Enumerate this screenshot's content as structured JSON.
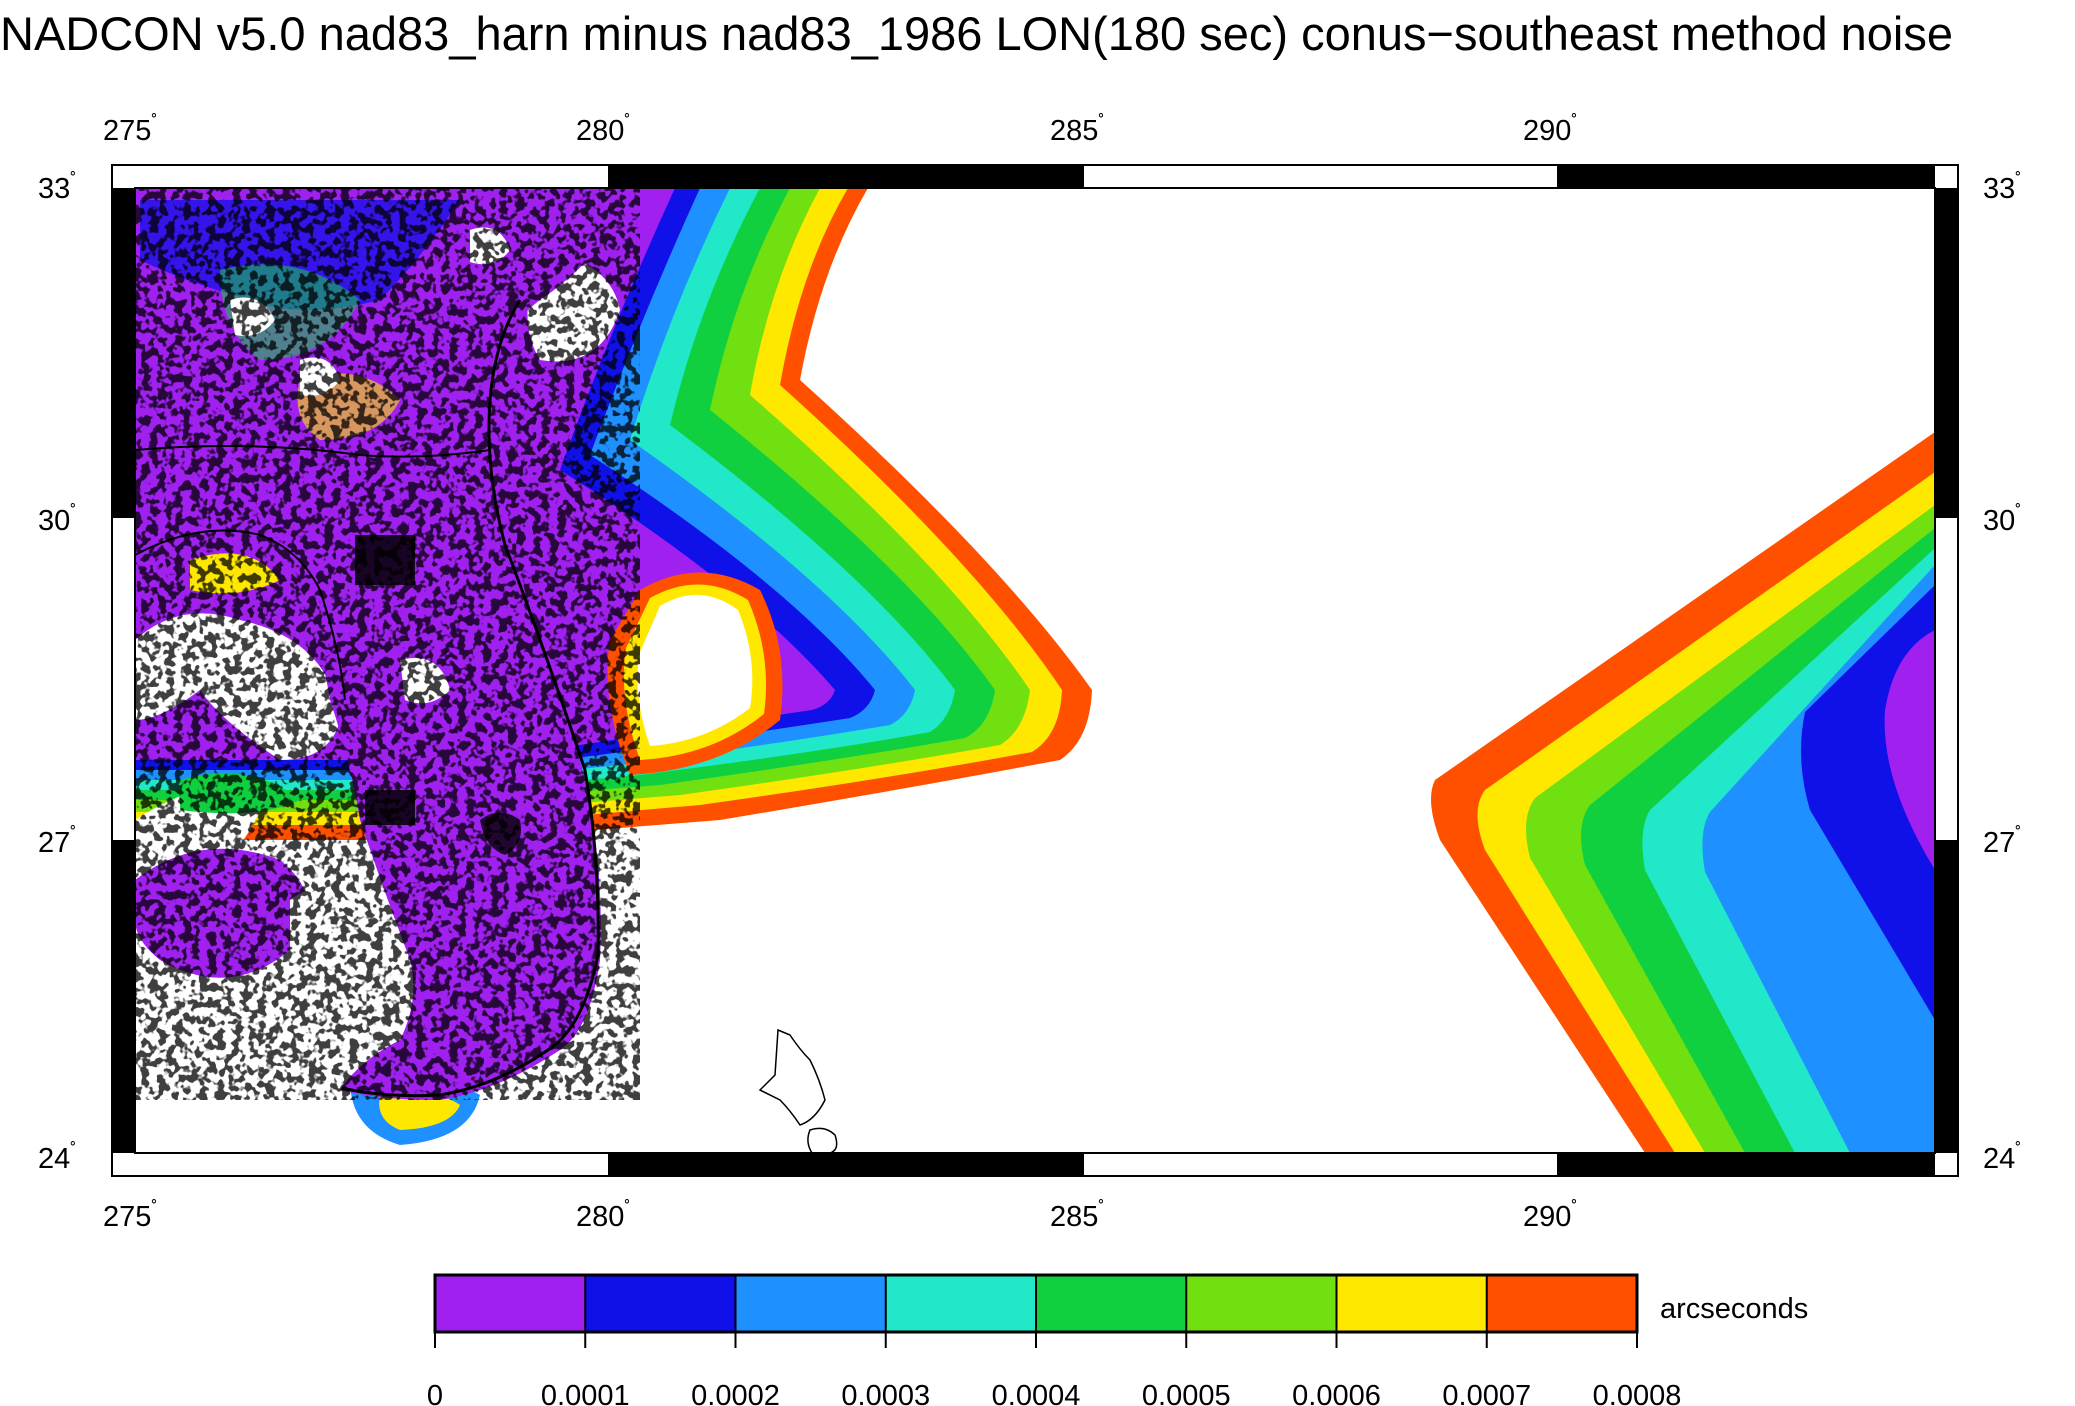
{
  "title": "NADCON v5.0 nad83_harn minus nad83_1986 LON(180 sec) conus−southeast method noise",
  "map": {
    "lon_ticks": [
      "275",
      "280",
      "285",
      "290"
    ],
    "lat_ticks": [
      "33",
      "30",
      "27",
      "24"
    ],
    "degree_symbol": "˚",
    "lon_range": [
      275,
      294
    ],
    "lat_range": [
      24,
      33
    ]
  },
  "colorbar": {
    "unit_label": "arcseconds",
    "tick_labels": [
      "0",
      "0.0001",
      "0.0002",
      "0.0003",
      "0.0004",
      "0.0005",
      "0.0006",
      "0.0007",
      "0.0008"
    ],
    "colors": [
      "#a020f0",
      "#1010e8",
      "#1e90ff",
      "#20e8c8",
      "#10d040",
      "#70e010",
      "#ffe800",
      "#ff5000"
    ]
  }
}
